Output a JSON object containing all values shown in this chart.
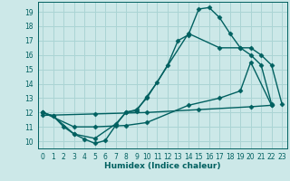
{
  "xlabel": "Humidex (Indice chaleur)",
  "ylabel": "",
  "bg_color": "#cce8e8",
  "grid_color": "#aad4d4",
  "line_color": "#006060",
  "xlim": [
    -0.5,
    23.5
  ],
  "ylim": [
    9.5,
    19.7
  ],
  "xticks": [
    0,
    1,
    2,
    3,
    4,
    5,
    6,
    7,
    8,
    9,
    10,
    11,
    12,
    13,
    14,
    15,
    16,
    17,
    18,
    19,
    20,
    21,
    22,
    23
  ],
  "yticks": [
    10,
    11,
    12,
    13,
    14,
    15,
    16,
    17,
    18,
    19
  ],
  "line1_x": [
    0,
    1,
    2,
    3,
    4,
    5,
    6,
    7,
    8,
    9,
    10,
    11,
    12,
    13,
    14,
    15,
    16,
    17,
    18,
    19,
    20,
    21,
    22,
    23
  ],
  "line1_y": [
    12.0,
    11.75,
    11.0,
    10.5,
    10.15,
    9.85,
    10.05,
    11.1,
    12.05,
    12.1,
    13.1,
    14.1,
    15.3,
    17.0,
    17.4,
    19.2,
    19.3,
    18.6,
    17.5,
    16.5,
    16.5,
    16.0,
    15.3,
    12.6
  ],
  "line2_x": [
    0,
    1,
    3,
    5,
    7,
    8,
    9,
    10,
    14,
    17,
    19,
    20,
    21,
    22
  ],
  "line2_y": [
    12.0,
    11.75,
    10.5,
    10.2,
    11.2,
    12.0,
    12.2,
    13.0,
    17.5,
    16.5,
    16.5,
    16.0,
    15.3,
    12.6
  ],
  "line3_x": [
    0,
    3,
    5,
    8,
    10,
    14,
    17,
    19,
    20,
    22
  ],
  "line3_y": [
    12.0,
    11.0,
    11.0,
    11.1,
    11.3,
    12.5,
    13.0,
    13.5,
    15.5,
    12.5
  ],
  "line4_x": [
    0,
    5,
    10,
    15,
    20,
    22
  ],
  "line4_y": [
    11.8,
    11.9,
    12.0,
    12.2,
    12.4,
    12.5
  ],
  "marker": "D",
  "markersize": 2.5,
  "linewidth": 1.0
}
